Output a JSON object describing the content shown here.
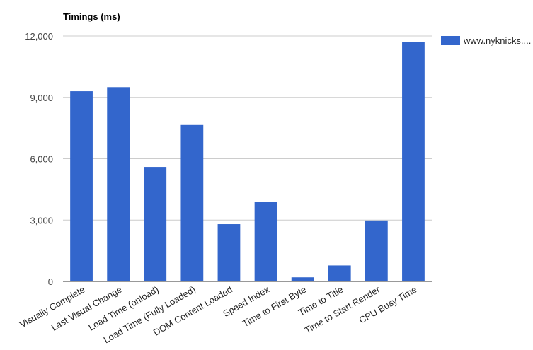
{
  "chart_data": {
    "type": "bar",
    "title": "Timings (ms)",
    "xlabel": "",
    "ylabel": "",
    "ylim": [
      0,
      12000
    ],
    "yticks": [
      "0",
      "3,000",
      "6,000",
      "9,000",
      "12,000"
    ],
    "ytick_values": [
      0,
      3000,
      6000,
      9000,
      12000
    ],
    "grid": true,
    "legend_position": "right",
    "categories": [
      "Visually Complete",
      "Last Visual Change",
      "Load Time (onload)",
      "Load Time (Fully Loaded)",
      "DOM Content Loaded",
      "Speed Index",
      "Time to First Byte",
      "Time to Title",
      "Time to Start Render",
      "CPU Busy Time"
    ],
    "series": [
      {
        "name": "www.nyknicks....",
        "color": "#3366cc",
        "values": [
          9300,
          9500,
          5600,
          7650,
          2800,
          3900,
          200,
          780,
          2980,
          11700
        ]
      }
    ]
  }
}
